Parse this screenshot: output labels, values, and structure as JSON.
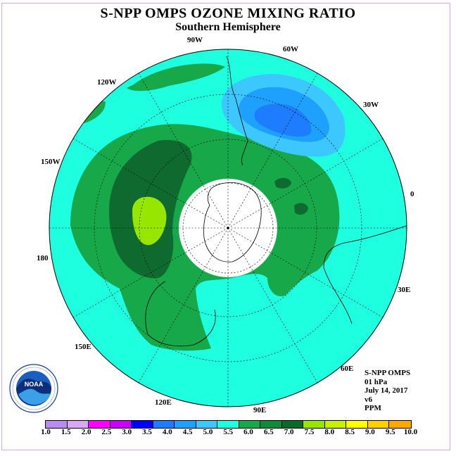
{
  "title": "S-NPP OMPS OZONE MIXING RATIO",
  "subtitle": "Southern Hemisphere",
  "longitude_labels": {
    "lon_90w": "90W",
    "lon_60w": "60W",
    "lon_30w": "30W",
    "lon_120w": "120W",
    "lon_150w": "150W",
    "lon_0": "0",
    "lon_180": "180",
    "lon_30e": "30E",
    "lon_60e": "60E",
    "lon_90e": "90E",
    "lon_120e": "120E",
    "lon_150e": "150E"
  },
  "info": {
    "instrument": "S-NPP OMPS",
    "level": "01 hPa",
    "date": "July 14, 2017",
    "version": "v6",
    "units": "PPM"
  },
  "colorbar": {
    "colors": [
      "#b98cf0",
      "#d8a8f5",
      "#ff00ff",
      "#cc00ff",
      "#0000ff",
      "#1e7cff",
      "#1ea0ff",
      "#3cc8ff",
      "#1effe0",
      "#17a84a",
      "#0e8a38",
      "#0a6a2a",
      "#96e600",
      "#c8f000",
      "#ffff00",
      "#ffd000",
      "#ffa800",
      "#ff7000",
      "#ff0000",
      "#b00000",
      "#8b5a3c"
    ],
    "labels": [
      "1.0",
      "1.5",
      "2.0",
      "2.5",
      "3.0",
      "3.5",
      "4.0",
      "4.5",
      "5.0",
      "5.5",
      "6.0",
      "6.5",
      "7.0",
      "7.5",
      "8.0",
      "8.5",
      "9.0",
      "9.5",
      "10.0"
    ]
  },
  "logo": {
    "text": "NOAA"
  },
  "colors": {
    "background_aqua": "#1effe0",
    "green_5_5": "#17a84a",
    "dark_green_6_0": "#0e6a2e",
    "lime_6_5": "#96e600",
    "light_blue": "#3cc8ff",
    "mid_blue": "#1ea0ff",
    "blue": "#1e7cff"
  }
}
